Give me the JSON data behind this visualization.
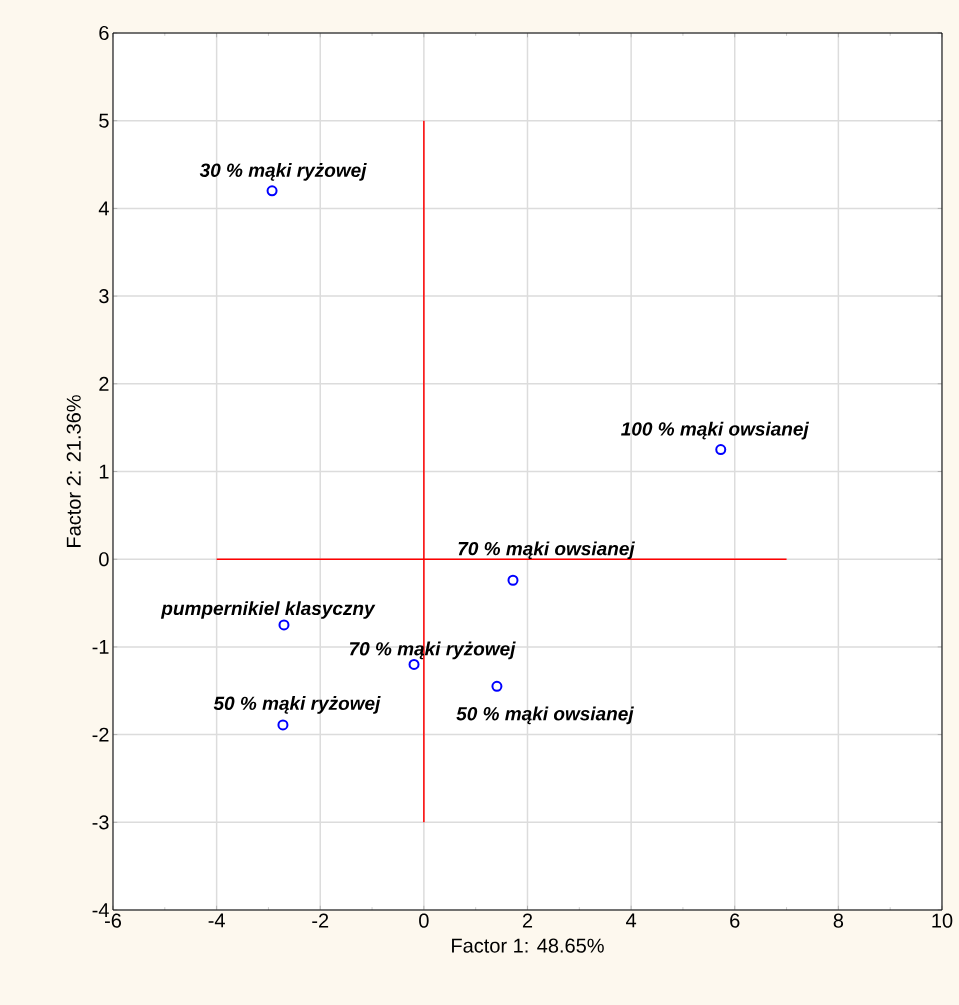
{
  "chart_data": {
    "type": "scatter",
    "xlabel": "Factor 1: 48.65%",
    "ylabel": "Factor 2: 21.36%",
    "series": [
      {
        "color": "#0000ff",
        "marker": "circle",
        "x": [
          -2.93,
          5.73,
          1.72,
          -2.7,
          -0.19,
          1.41,
          -2.72
        ],
        "values": [
          4.2,
          1.25,
          -0.24,
          -0.75,
          -1.2,
          -1.45,
          -1.89
        ]
      },
      {
        "type": "line",
        "color": "#ff0000",
        "x": [
          -4,
          7
        ],
        "values": [
          0,
          0
        ]
      },
      {
        "type": "line",
        "color": "#ff0000",
        "x": [
          0,
          0
        ],
        "values": [
          -3,
          5
        ]
      }
    ],
    "annotations": [
      {
        "text": "30 % mąki ryżowej",
        "x": -2.93,
        "y": 4.2
      },
      {
        "text": "100 % mąki owsianej",
        "x": 5.73,
        "y": 1.25
      },
      {
        "text": "70 % mąki owsianej",
        "x": 1.72,
        "y": -0.24
      },
      {
        "text": "pumpernikiel klasyczny",
        "x": -2.7,
        "y": -0.75
      },
      {
        "text": "70 % mąki ryżowej",
        "x": -0.19,
        "y": -1.2
      },
      {
        "text": "50 % mąki owsianej",
        "x": 1.41,
        "y": -1.45
      },
      {
        "text": "50 % mąki ryżowej",
        "x": -2.72,
        "y": -1.89
      }
    ],
    "xlim": [
      -6,
      10
    ],
    "ylim": [
      -4,
      6
    ],
    "xticks": [
      -6,
      -4,
      -2,
      0,
      2,
      4,
      6,
      8,
      10
    ],
    "yticks": [
      -4,
      -3,
      -2,
      -1,
      0,
      1,
      2,
      3,
      4,
      5,
      6
    ],
    "grid": true
  }
}
